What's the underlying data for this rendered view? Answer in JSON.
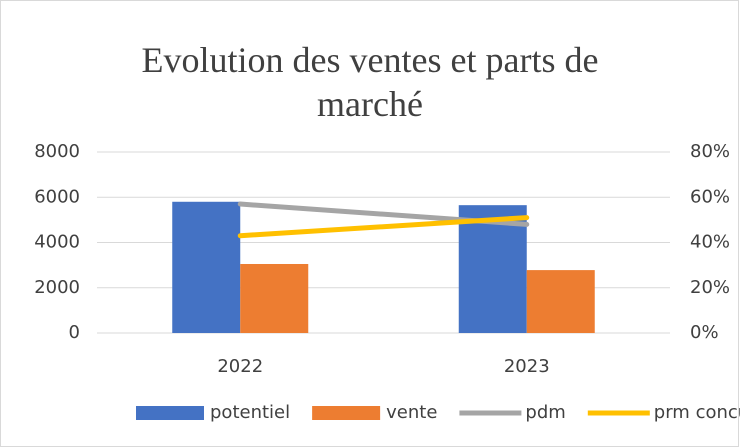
{
  "chart_data": {
    "type": "bar",
    "title": "Evolution des ventes et parts de marché",
    "categories": [
      "2022",
      "2023"
    ],
    "series": [
      {
        "name": "potentiel",
        "type": "bar",
        "color": "#4472c4",
        "values": [
          5800,
          5650
        ]
      },
      {
        "name": "vente",
        "type": "bar",
        "color": "#ed7d31",
        "values": [
          3050,
          2780
        ]
      },
      {
        "name": "pdm",
        "type": "line",
        "axis": "y2",
        "color": "#a5a5a5",
        "values": [
          57,
          48
        ]
      },
      {
        "name": "prm concu",
        "type": "line",
        "axis": "y2",
        "color": "#ffc000",
        "values": [
          43,
          51
        ]
      }
    ],
    "ylim": [
      0,
      8000
    ],
    "yticks": [
      0,
      2000,
      4000,
      6000,
      8000
    ],
    "y2lim": [
      0,
      80
    ],
    "y2ticks": [
      {
        "value": 0,
        "label": "0%"
      },
      {
        "value": 20,
        "label": "20%"
      },
      {
        "value": 40,
        "label": "40%"
      },
      {
        "value": 60,
        "label": "60%"
      },
      {
        "value": 80,
        "label": "80%"
      }
    ],
    "grid": true,
    "legend": "bottom"
  }
}
